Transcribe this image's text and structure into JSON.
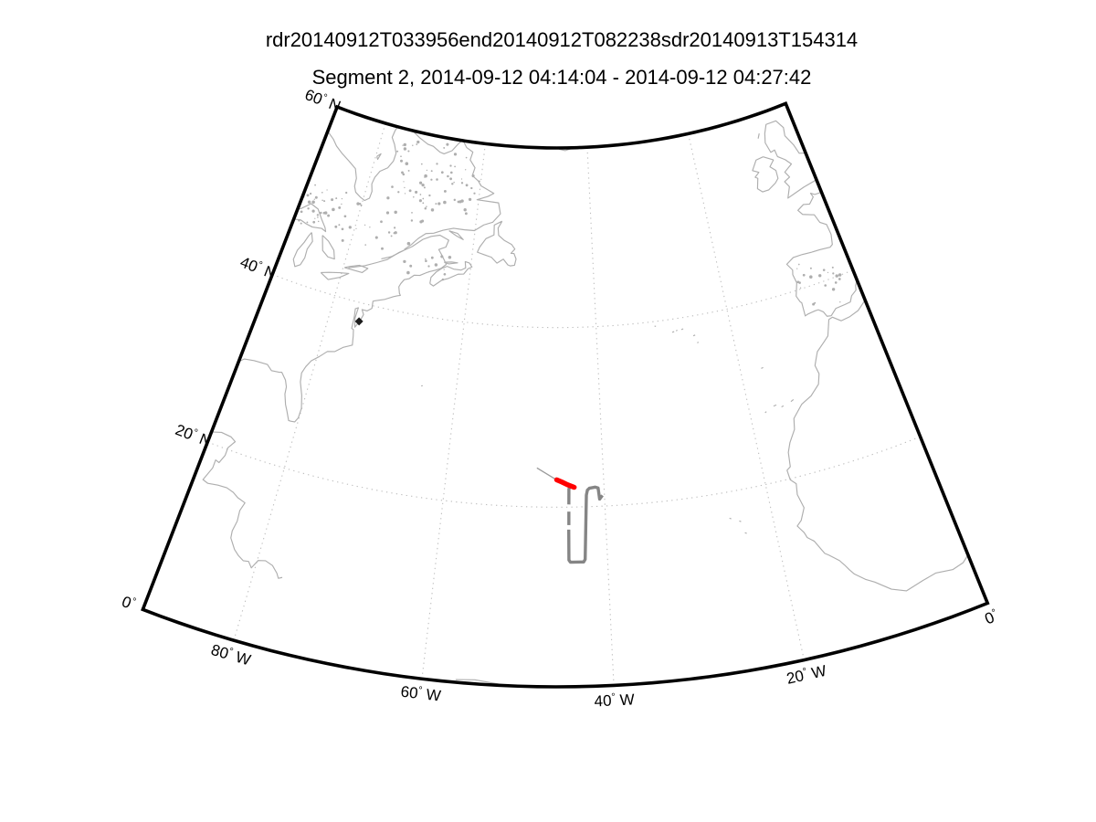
{
  "figure": {
    "title": "rdr20140912T033956end20140912T082238sdr20140913T154314",
    "subtitle": "Segment 2, 2014-09-12 04:14:04 - 2014-09-12 04:27:42",
    "background": "#ffffff"
  },
  "colors": {
    "map_border": "#000000",
    "coastline": "#aeaeae",
    "graticule": "#bdbdbd",
    "flight_track": "#858585",
    "transit_leader": "#9a9a9a",
    "segment_highlight": "#ff0000",
    "station_marker": "#1c1c1c",
    "label_text": "#000000"
  },
  "chart_data": {
    "type": "map",
    "region": "North Atlantic",
    "projection": {
      "kind": "conic",
      "lon_min": -90,
      "lon_max": 0,
      "lat_min": 0,
      "lat_max": 60
    },
    "graticule": {
      "interval_deg": 20,
      "line_style": "dotted"
    },
    "lat_axis_labels": [
      {
        "text": "60° N",
        "lat": 60
      },
      {
        "text": "40° N",
        "lat": 40
      },
      {
        "text": "20° N",
        "lat": 20
      },
      {
        "text": "0°",
        "lat": 0
      }
    ],
    "lon_axis_labels": [
      {
        "text": "80° W",
        "lon": -80
      },
      {
        "text": "60° W",
        "lon": -60
      },
      {
        "text": "40° W",
        "lon": -40
      },
      {
        "text": "20° W",
        "lon": -20
      },
      {
        "text": "0°",
        "lon": 0
      }
    ],
    "series": [
      {
        "name": "transit-leader",
        "style": "thin-gray",
        "points": [
          [
            -48.5,
            24.35
          ],
          [
            -45.9,
            23.0
          ]
        ]
      },
      {
        "name": "flight-track",
        "style": "thick-gray",
        "segments": [
          [
            [
              -45.6,
              22.85
            ],
            [
              -44.3,
              22.3
            ],
            [
              -44.42,
              22.0
            ],
            [
              -44.45,
              20.3
            ]
          ],
          [
            [
              -44.46,
              19.5
            ],
            [
              -44.48,
              18.0
            ]
          ],
          [
            [
              -44.5,
              17.5
            ],
            [
              -44.52,
              14.1
            ],
            [
              -44.35,
              13.87
            ],
            [
              -42.8,
              13.87
            ],
            [
              -42.62,
              14.15
            ],
            [
              -42.25,
              21.3
            ],
            [
              -42.1,
              21.85
            ],
            [
              -41.85,
              22.05
            ],
            [
              -41.1,
              22.15
            ],
            [
              -40.75,
              22.05
            ],
            [
              -40.62,
              20.8
            ],
            [
              -40.25,
              21.2
            ]
          ]
        ]
      },
      {
        "name": "segment-2-highlight",
        "style": "thick-red",
        "points": [
          [
            -45.95,
            23.05
          ],
          [
            -45.3,
            22.8
          ],
          [
            -44.6,
            22.5
          ],
          [
            -43.75,
            22.2
          ]
        ]
      }
    ],
    "station_marker": {
      "shape": "diamond",
      "lon": -75.5,
      "lat": 37.95
    }
  }
}
